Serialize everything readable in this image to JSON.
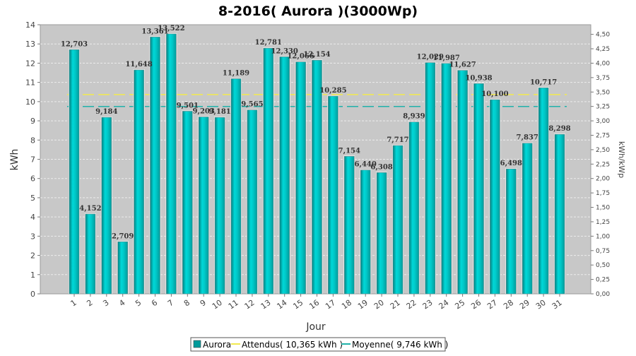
{
  "chart_data": {
    "type": "bar",
    "title": "8-2016( Aurora )(3000Wp)",
    "xlabel": "Jour",
    "ylabel": "kWh",
    "y2label": "kWh/kWp",
    "ylim": [
      0,
      14
    ],
    "y2lim": [
      0,
      4.667
    ],
    "yticks": [
      "0",
      "1",
      "2",
      "3",
      "4",
      "5",
      "6",
      "7",
      "8",
      "9",
      "10",
      "11",
      "12",
      "13",
      "14"
    ],
    "y2ticks": [
      "0,00",
      "0,25",
      "0,50",
      "0,75",
      "1,00",
      "1,25",
      "1,50",
      "1,75",
      "2,00",
      "2,25",
      "2,50",
      "2,75",
      "3,00",
      "3,25",
      "3,50",
      "3,75",
      "4,00",
      "4,25",
      "4,50"
    ],
    "categories": [
      "1",
      "2",
      "3",
      "4",
      "5",
      "6",
      "7",
      "8",
      "9",
      "10",
      "11",
      "12",
      "13",
      "14",
      "15",
      "16",
      "17",
      "18",
      "19",
      "20",
      "21",
      "22",
      "23",
      "24",
      "25",
      "26",
      "27",
      "28",
      "29",
      "30",
      "31"
    ],
    "series": [
      {
        "name": "Aurora",
        "values": [
          12.703,
          4.152,
          9.184,
          2.709,
          11.648,
          13.361,
          13.522,
          9.501,
          9.203,
          9.181,
          11.189,
          9.565,
          12.781,
          12.33,
          12.066,
          12.154,
          10.285,
          7.154,
          6.44,
          6.308,
          7.717,
          8.939,
          12.029,
          11.987,
          11.627,
          10.938,
          10.1,
          6.498,
          7.837,
          10.717,
          8.298
        ],
        "labels": [
          "12,703",
          "4,152",
          "9,184",
          "2,709",
          "11,648",
          "13,361",
          "13,522",
          "9,501",
          "9,203",
          "9,181",
          "11,189",
          "9,565",
          "12,781",
          "12,330",
          "12,066",
          "12,154",
          "10,285",
          "7,154",
          "6,440",
          "6,308",
          "7,717",
          "8,939",
          "12,029",
          "11,987",
          "11,627",
          "10,938",
          "10,100",
          "6,498",
          "7,837",
          "10,717",
          "8,298"
        ]
      }
    ],
    "reference_lines": [
      {
        "name": "Attendus",
        "value": 10.365,
        "color": "#f2e94e"
      },
      {
        "name": "Moyenne",
        "value": 9.746,
        "color": "#20b2aa"
      }
    ],
    "legend": {
      "position": "bottom",
      "items": [
        "Aurora",
        "Attendus( 10,365 kWh )",
        "Moyenne( 9,746 kWh )"
      ]
    },
    "grid": true,
    "colors": {
      "bar": "#00c4c4",
      "bar_dark": "#008f8f",
      "plot_bg": "#c8c8c8",
      "grid": "#e8e8e8"
    }
  }
}
